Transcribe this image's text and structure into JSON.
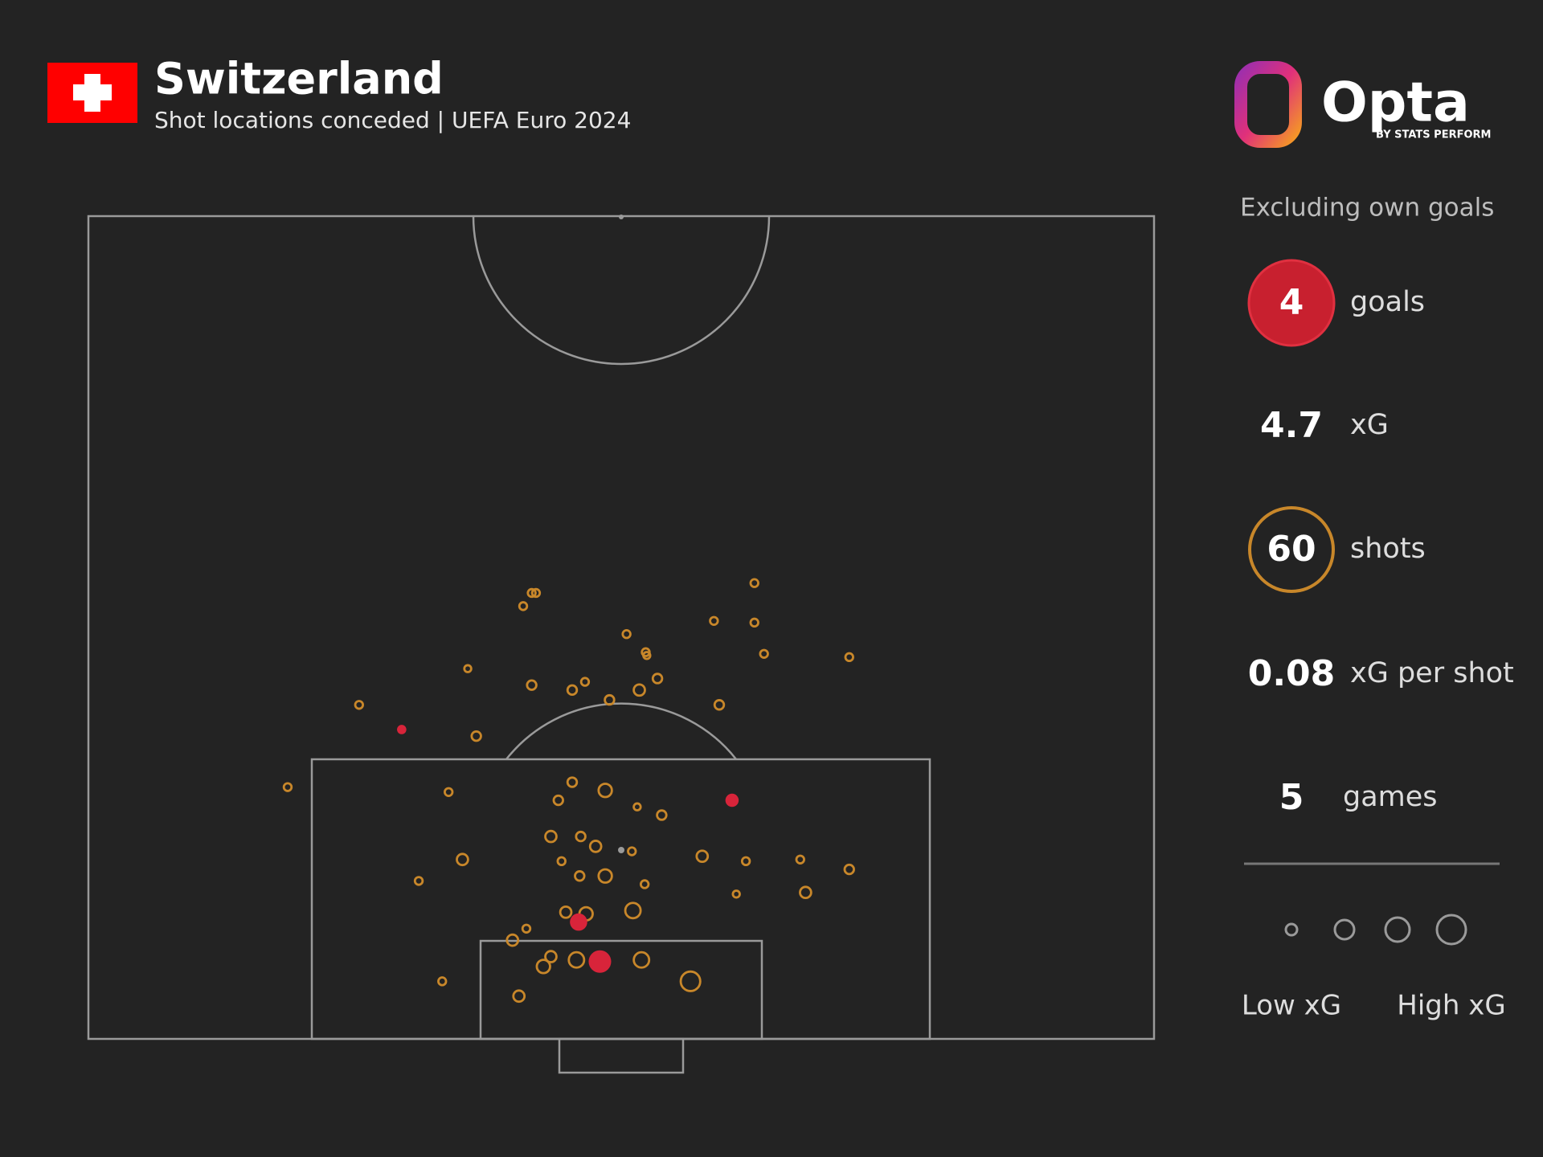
{
  "header": {
    "title": "Switzerland",
    "subtitle": "Shot locations conceded | UEFA Euro 2024"
  },
  "logo": {
    "name": "Opta",
    "byline": "BY STATS PERFORM"
  },
  "panel": {
    "note": "Excluding own goals",
    "stats": [
      {
        "value": 4,
        "label": "goals"
      },
      {
        "value": 4.7,
        "label": "xG"
      },
      {
        "value": 60,
        "label": "shots"
      },
      {
        "value": 0.08,
        "label": "xG per shot"
      },
      {
        "value": 5,
        "label": "games"
      }
    ],
    "legend": {
      "low": "Low xG",
      "high": "High xG"
    }
  },
  "chart_data": {
    "type": "scatter",
    "color": "#c8872a",
    "goal_color": "#d8243a",
    "xlim": [
      0,
      100
    ],
    "ylim": [
      0,
      50
    ],
    "x": [
      41.6,
      42.0,
      40.8,
      62.5,
      58.7,
      62.5,
      50.5,
      52.3,
      52.4,
      63.4,
      71.4,
      35.6,
      41.6,
      45.4,
      46.6,
      51.7,
      53.4,
      48.9,
      59.2,
      25.4,
      29.4,
      36.4,
      18.7,
      33.8,
      45.4,
      48.5,
      44.1,
      51.5,
      53.8,
      60.4,
      43.4,
      46.2,
      47.6,
      51.0,
      35.1,
      44.4,
      57.6,
      61.7,
      66.8,
      71.4,
      46.1,
      48.5,
      52.2,
      31.0,
      60.8,
      67.3,
      51.1,
      44.8,
      46.7,
      46.0,
      41.1,
      39.8,
      43.4,
      42.7,
      45.8,
      48.0,
      51.9,
      56.5,
      33.2,
      40.4
    ],
    "values": [
      27.1,
      27.1,
      26.3,
      27.7,
      25.4,
      25.3,
      24.6,
      23.5,
      23.3,
      23.4,
      23.2,
      22.5,
      21.5,
      21.2,
      21.7,
      21.2,
      21.9,
      20.6,
      20.3,
      20.3,
      18.8,
      18.4,
      15.3,
      15.0,
      15.6,
      15.1,
      14.5,
      14.1,
      13.6,
      14.5,
      12.3,
      12.3,
      11.7,
      11.4,
      10.9,
      10.8,
      11.1,
      10.8,
      10.9,
      10.3,
      9.9,
      9.9,
      9.4,
      9.6,
      8.8,
      8.9,
      7.8,
      7.7,
      7.6,
      7.1,
      6.7,
      6.0,
      5.0,
      4.4,
      4.8,
      4.7,
      4.8,
      3.5,
      3.5,
      2.6
    ],
    "sizes": [
      0.02,
      0.02,
      0.02,
      0.02,
      0.02,
      0.02,
      0.02,
      0.02,
      0.01,
      0.02,
      0.02,
      0.01,
      0.05,
      0.05,
      0.02,
      0.1,
      0.05,
      0.05,
      0.05,
      0.02,
      0.05,
      0.05,
      0.02,
      0.02,
      0.05,
      0.18,
      0.05,
      0.01,
      0.05,
      0.18,
      0.1,
      0.05,
      0.1,
      0.02,
      0.1,
      0.02,
      0.1,
      0.02,
      0.02,
      0.05,
      0.05,
      0.18,
      0.02,
      0.02,
      0.01,
      0.1,
      0.28,
      0.1,
      0.18,
      0.4,
      0.02,
      0.1,
      0.1,
      0.18,
      0.28,
      0.8,
      0.28,
      0.55,
      0.02,
      0.1
    ],
    "is_goal": [
      false,
      false,
      false,
      false,
      false,
      false,
      false,
      false,
      false,
      false,
      false,
      false,
      false,
      false,
      false,
      false,
      false,
      false,
      false,
      false,
      true,
      false,
      false,
      false,
      false,
      false,
      false,
      false,
      false,
      true,
      false,
      false,
      false,
      false,
      false,
      false,
      false,
      false,
      false,
      false,
      false,
      false,
      false,
      false,
      false,
      false,
      false,
      false,
      false,
      true,
      false,
      false,
      false,
      false,
      false,
      true,
      false,
      false,
      false,
      false
    ]
  }
}
